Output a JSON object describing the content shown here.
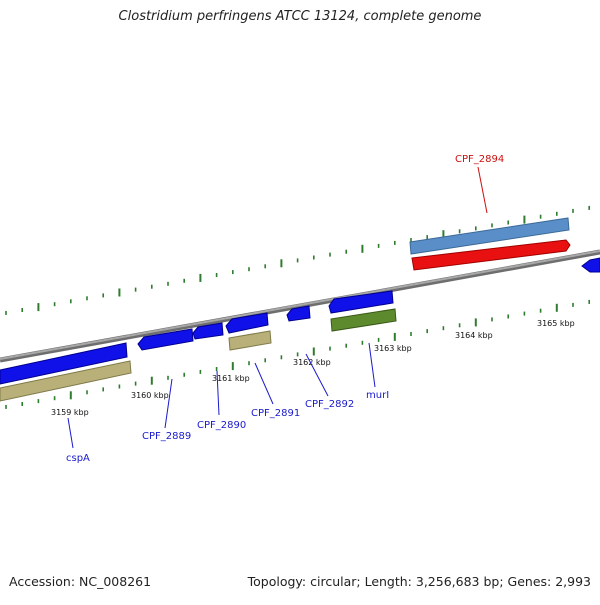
{
  "title": "Clostridium perfringens ATCC 13124, complete genome",
  "footer": {
    "accession": "Accession: NC_008261",
    "summary": "Topology: circular; Length: 3,256,683 bp; Genes: 2,993"
  },
  "colors": {
    "backbone": "#8c8c8c",
    "tick": "#2e7d2e",
    "cds": "#1010e8",
    "cds_highlight": "#e81010",
    "cds_alt": "#5a8ec8",
    "rna": "#b8b078",
    "misc": "#5e8a2e",
    "gene_label": "#1a1acc",
    "highlight_label": "#cc1010"
  },
  "scale_labels": [
    "3159 kbp",
    "3160 kbp",
    "3161 kbp",
    "3162 kbp",
    "3163 kbp",
    "3164 kbp",
    "3165 kbp"
  ],
  "gene_labels": [
    "cspA",
    "CPF_2889",
    "CPF_2890",
    "CPF_2891",
    "CPF_2892",
    "murI",
    "CPF_2894"
  ]
}
